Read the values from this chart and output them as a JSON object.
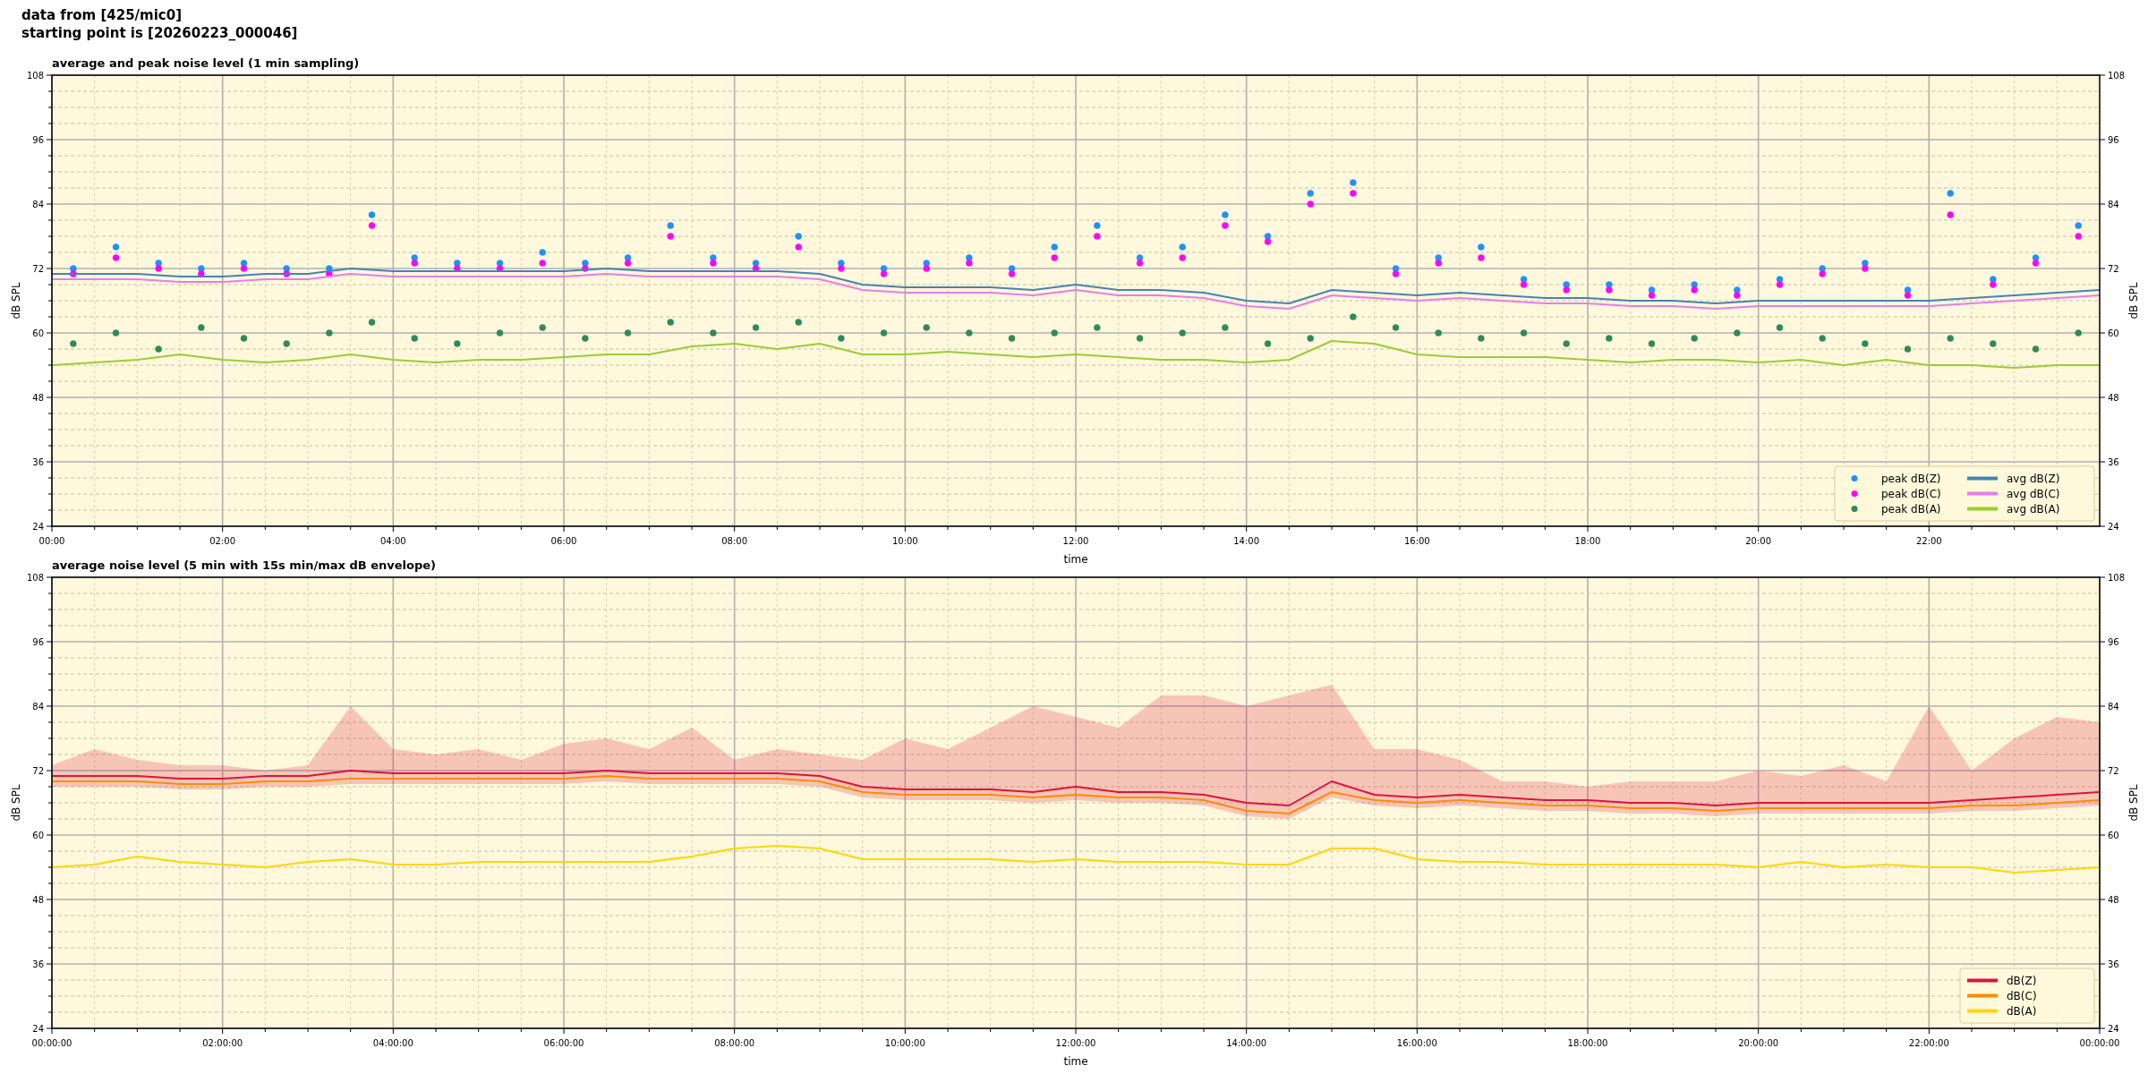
{
  "chart_data": [
    {
      "type": "line",
      "title": "average and peak noise level (1 min sampling)",
      "annotations": [
        "data from [425/mic0]",
        "starting point is [20260223_000046]"
      ],
      "xlabel": "time",
      "ylabel": "dB SPL",
      "y2label": "dB SPL",
      "xlim": [
        0,
        24
      ],
      "ylim": [
        24,
        108
      ],
      "y2lim": [
        24,
        108
      ],
      "xticks": [
        {
          "value": 0,
          "label": "00:00"
        },
        {
          "value": 0.5,
          "label": null
        },
        {
          "value": 1,
          "label": null
        },
        {
          "value": 1.5,
          "label": null
        },
        {
          "value": 2,
          "label": "02:00"
        },
        {
          "value": 2.5,
          "label": null
        },
        {
          "value": 3,
          "label": null
        },
        {
          "value": 3.5,
          "label": null
        },
        {
          "value": 4,
          "label": "04:00"
        },
        {
          "value": 4.5,
          "label": null
        },
        {
          "value": 5,
          "label": null
        },
        {
          "value": 5.5,
          "label": null
        },
        {
          "value": 6,
          "label": "06:00"
        },
        {
          "value": 6.5,
          "label": null
        },
        {
          "value": 7,
          "label": null
        },
        {
          "value": 7.5,
          "label": null
        },
        {
          "value": 8,
          "label": "08:00"
        },
        {
          "value": 8.5,
          "label": null
        },
        {
          "value": 9,
          "label": null
        },
        {
          "value": 9.5,
          "label": null
        },
        {
          "value": 10,
          "label": "10:00"
        },
        {
          "value": 10.5,
          "label": null
        },
        {
          "value": 11,
          "label": null
        },
        {
          "value": 11.5,
          "label": null
        },
        {
          "value": 12,
          "label": "12:00"
        },
        {
          "value": 12.5,
          "label": null
        },
        {
          "value": 13,
          "label": null
        },
        {
          "value": 13.5,
          "label": null
        },
        {
          "value": 14,
          "label": "14:00"
        },
        {
          "value": 14.5,
          "label": null
        },
        {
          "value": 15,
          "label": null
        },
        {
          "value": 15.5,
          "label": null
        },
        {
          "value": 16,
          "label": "16:00"
        },
        {
          "value": 16.5,
          "label": null
        },
        {
          "value": 17,
          "label": null
        },
        {
          "value": 17.5,
          "label": null
        },
        {
          "value": 18,
          "label": "18:00"
        },
        {
          "value": 18.5,
          "label": null
        },
        {
          "value": 19,
          "label": null
        },
        {
          "value": 19.5,
          "label": null
        },
        {
          "value": 20,
          "label": "20:00"
        },
        {
          "value": 20.5,
          "label": null
        },
        {
          "value": 21,
          "label": null
        },
        {
          "value": 21.5,
          "label": null
        },
        {
          "value": 22,
          "label": "22:00"
        },
        {
          "value": 22.5,
          "label": null
        },
        {
          "value": 23,
          "label": null
        },
        {
          "value": 23.5,
          "label": null
        }
      ],
      "yticks": [
        24,
        {
          "value": 27,
          "label": null
        },
        {
          "value": 30,
          "label": null
        },
        {
          "value": 33,
          "label": null
        },
        36,
        {
          "value": 39,
          "label": null
        },
        {
          "value": 42,
          "label": null
        },
        {
          "value": 45,
          "label": null
        },
        48,
        {
          "value": 51,
          "label": null
        },
        {
          "value": 54,
          "label": null
        },
        {
          "value": 57,
          "label": null
        },
        60,
        {
          "value": 63,
          "label": null
        },
        {
          "value": 66,
          "label": null
        },
        {
          "value": 69,
          "label": null
        },
        72,
        {
          "value": 75,
          "label": null
        },
        {
          "value": 78,
          "label": null
        },
        {
          "value": 81,
          "label": null
        },
        84,
        {
          "value": 87,
          "label": null
        },
        {
          "value": 90,
          "label": null
        },
        {
          "value": 93,
          "label": null
        },
        96,
        {
          "value": 99,
          "label": null
        },
        {
          "value": 102,
          "label": null
        },
        {
          "value": 105,
          "label": null
        },
        108
      ],
      "y2ticks": [
        24,
        36,
        48,
        60,
        72,
        84,
        96,
        108
      ],
      "grid": true,
      "legend": "bottom right",
      "x": [
        0,
        0.5,
        1,
        1.5,
        2,
        2.5,
        3,
        3.5,
        4,
        4.5,
        5,
        5.5,
        6,
        6.5,
        7,
        7.5,
        8,
        8.5,
        9,
        9.5,
        10,
        10.5,
        11,
        11.5,
        12,
        12.5,
        13,
        13.5,
        14,
        14.5,
        15,
        15.5,
        16,
        16.5,
        17,
        17.5,
        18,
        18.5,
        19,
        19.5,
        20,
        20.5,
        21,
        21.5,
        22,
        22.5,
        23,
        23.5,
        24
      ],
      "series": [
        {
          "name": "peak dB(Z)",
          "type": "scatter",
          "marker": "circle",
          "color": "#1e90ff",
          "x": [
            0.25,
            0.75,
            1.25,
            1.75,
            2.25,
            2.75,
            3.25,
            3.75,
            4.25,
            4.75,
            5.25,
            5.75,
            6.25,
            6.75,
            7.25,
            7.75,
            8.25,
            8.75,
            9.25,
            9.75,
            10.25,
            10.75,
            11.25,
            11.75,
            12.25,
            12.75,
            13.25,
            13.75,
            14.25,
            14.75,
            15.25,
            15.75,
            16.25,
            16.75,
            17.25,
            17.75,
            18.25,
            18.75,
            19.25,
            19.75,
            20.25,
            20.75,
            21.25,
            21.75,
            22.25,
            22.75,
            23.25,
            23.75
          ],
          "values": [
            72,
            76,
            73,
            72,
            73,
            72,
            72,
            82,
            74,
            73,
            73,
            75,
            73,
            74,
            80,
            74,
            73,
            78,
            73,
            72,
            73,
            74,
            72,
            76,
            80,
            74,
            76,
            82,
            78,
            86,
            88,
            72,
            74,
            76,
            70,
            69,
            69,
            68,
            69,
            68,
            70,
            72,
            73,
            68,
            86,
            70,
            74,
            80
          ]
        },
        {
          "name": "peak dB(C)",
          "type": "scatter",
          "marker": "circle",
          "color": "#ff00ff",
          "x": [
            0.25,
            0.75,
            1.25,
            1.75,
            2.25,
            2.75,
            3.25,
            3.75,
            4.25,
            4.75,
            5.25,
            5.75,
            6.25,
            6.75,
            7.25,
            7.75,
            8.25,
            8.75,
            9.25,
            9.75,
            10.25,
            10.75,
            11.25,
            11.75,
            12.25,
            12.75,
            13.25,
            13.75,
            14.25,
            14.75,
            15.25,
            15.75,
            16.25,
            16.75,
            17.25,
            17.75,
            18.25,
            18.75,
            19.25,
            19.75,
            20.25,
            20.75,
            21.25,
            21.75,
            22.25,
            22.75,
            23.25,
            23.75
          ],
          "values": [
            71,
            74,
            72,
            71,
            72,
            71,
            71,
            80,
            73,
            72,
            72,
            73,
            72,
            73,
            78,
            73,
            72,
            76,
            72,
            71,
            72,
            73,
            71,
            74,
            78,
            73,
            74,
            80,
            77,
            84,
            86,
            71,
            73,
            74,
            69,
            68,
            68,
            67,
            68,
            67,
            69,
            71,
            72,
            67,
            82,
            69,
            73,
            78
          ]
        },
        {
          "name": "peak dB(A)",
          "type": "scatter",
          "marker": "circle",
          "color": "#2e8b57",
          "x": [
            0.25,
            0.75,
            1.25,
            1.75,
            2.25,
            2.75,
            3.25,
            3.75,
            4.25,
            4.75,
            5.25,
            5.75,
            6.25,
            6.75,
            7.25,
            7.75,
            8.25,
            8.75,
            9.25,
            9.75,
            10.25,
            10.75,
            11.25,
            11.75,
            12.25,
            12.75,
            13.25,
            13.75,
            14.25,
            14.75,
            15.25,
            15.75,
            16.25,
            16.75,
            17.25,
            17.75,
            18.25,
            18.75,
            19.25,
            19.75,
            20.25,
            20.75,
            21.25,
            21.75,
            22.25,
            22.75,
            23.25,
            23.75
          ],
          "values": [
            58,
            60,
            57,
            61,
            59,
            58,
            60,
            62,
            59,
            58,
            60,
            61,
            59,
            60,
            62,
            60,
            61,
            62,
            59,
            60,
            61,
            60,
            59,
            60,
            61,
            59,
            60,
            61,
            58,
            59,
            63,
            61,
            60,
            59,
            60,
            58,
            59,
            58,
            59,
            60,
            61,
            59,
            58,
            57,
            59,
            58,
            57,
            60
          ]
        },
        {
          "name": "avg dB(Z)",
          "color": "#4682b4",
          "values": [
            71,
            71,
            71,
            70.5,
            70.5,
            71,
            71,
            72,
            71.5,
            71.5,
            71.5,
            71.5,
            71.5,
            72,
            71.5,
            71.5,
            71.5,
            71.5,
            71,
            69,
            68.5,
            68.5,
            68.5,
            68,
            69,
            68,
            68,
            67.5,
            66,
            65.5,
            68,
            67.5,
            67,
            67.5,
            67,
            66.5,
            66.5,
            66,
            66,
            65.5,
            66,
            66,
            66,
            66,
            66,
            66.5,
            67,
            67.5,
            68
          ]
        },
        {
          "name": "avg dB(C)",
          "color": "#e87de8",
          "values": [
            70,
            70,
            70,
            69.5,
            69.5,
            70,
            70,
            71,
            70.5,
            70.5,
            70.5,
            70.5,
            70.5,
            71,
            70.5,
            70.5,
            70.5,
            70.5,
            70,
            68,
            67.5,
            67.5,
            67.5,
            67,
            68,
            67,
            67,
            66.5,
            65,
            64.5,
            67,
            66.5,
            66,
            66.5,
            66,
            65.5,
            65.5,
            65,
            65,
            64.5,
            65,
            65,
            65,
            65,
            65,
            65.5,
            66,
            66.5,
            67
          ]
        },
        {
          "name": "avg dB(A)",
          "color": "#9acd32",
          "values": [
            54,
            54.5,
            55,
            56,
            55,
            54.5,
            55,
            56,
            55,
            54.5,
            55,
            55,
            55.5,
            56,
            56,
            57.5,
            58,
            57,
            58,
            56,
            56,
            56.5,
            56,
            55.5,
            56,
            55.5,
            55,
            55,
            54.5,
            55,
            58.5,
            58,
            56,
            55.5,
            55.5,
            55.5,
            55,
            54.5,
            55,
            55,
            54.5,
            55,
            54,
            55,
            54,
            54,
            53.5,
            54,
            54
          ]
        }
      ]
    },
    {
      "type": "line",
      "title": "average noise level (5 min with 15s min/max dB envelope)",
      "xlabel": "time",
      "ylabel": "dB SPL",
      "y2label": "dB SPL",
      "xlim": [
        "2026-02-23T00:00",
        "2026-02-24T00:00"
      ],
      "ylim": [
        24,
        108
      ],
      "y2lim": [
        24,
        108
      ],
      "xticks": [
        {
          "value": "2026-02-23T00:00",
          "label": "00:00:00"
        },
        {
          "value": "2026-02-23T00:30",
          "label": null
        },
        {
          "value": "2026-02-23T01:00",
          "label": null
        },
        {
          "value": "2026-02-23T01:30",
          "label": null
        },
        {
          "value": "2026-02-23T02:00",
          "label": "02:00:00"
        },
        {
          "value": "2026-02-23T02:30",
          "label": null
        },
        {
          "value": "2026-02-23T03:00",
          "label": null
        },
        {
          "value": "2026-02-23T03:30",
          "label": null
        },
        {
          "value": "2026-02-23T04:00",
          "label": "04:00:00"
        },
        {
          "value": "2026-02-23T04:30",
          "label": null
        },
        {
          "value": "2026-02-23T05:00",
          "label": null
        },
        {
          "value": "2026-02-23T05:30",
          "label": null
        },
        {
          "value": "2026-02-23T06:00",
          "label": "06:00:00"
        },
        {
          "value": "2026-02-23T06:30",
          "label": null
        },
        {
          "value": "2026-02-23T07:00",
          "label": null
        },
        {
          "value": "2026-02-23T07:30",
          "label": null
        },
        {
          "value": "2026-02-23T08:00",
          "label": "08:00:00"
        },
        {
          "value": "2026-02-23T08:30",
          "label": null
        },
        {
          "value": "2026-02-23T09:00",
          "label": null
        },
        {
          "value": "2026-02-23T09:30",
          "label": null
        },
        {
          "value": "2026-02-23T10:00",
          "label": "10:00:00"
        },
        {
          "value": "2026-02-23T10:30",
          "label": null
        },
        {
          "value": "2026-02-23T11:00",
          "label": null
        },
        {
          "value": "2026-02-23T11:30",
          "label": null
        },
        {
          "value": "2026-02-23T12:00",
          "label": "12:00:00"
        },
        {
          "value": "2026-02-23T12:30",
          "label": null
        },
        {
          "value": "2026-02-23T13:00",
          "label": null
        },
        {
          "value": "2026-02-23T13:30",
          "label": null
        },
        {
          "value": "2026-02-23T14:00",
          "label": "14:00:00"
        },
        {
          "value": "2026-02-23T14:30",
          "label": null
        },
        {
          "value": "2026-02-23T15:00",
          "label": null
        },
        {
          "value": "2026-02-23T15:30",
          "label": null
        },
        {
          "value": "2026-02-23T16:00",
          "label": "16:00:00"
        },
        {
          "value": "2026-02-23T16:30",
          "label": null
        },
        {
          "value": "2026-02-23T17:00",
          "label": null
        },
        {
          "value": "2026-02-23T17:30",
          "label": null
        },
        {
          "value": "2026-02-23T18:00",
          "label": "18:00:00"
        },
        {
          "value": "2026-02-23T18:30",
          "label": null
        },
        {
          "value": "2026-02-23T19:00",
          "label": null
        },
        {
          "value": "2026-02-23T19:30",
          "label": null
        },
        {
          "value": "2026-02-23T20:00",
          "label": "20:00:00"
        },
        {
          "value": "2026-02-23T20:30",
          "label": null
        },
        {
          "value": "2026-02-23T21:00",
          "label": null
        },
        {
          "value": "2026-02-23T21:30",
          "label": null
        },
        {
          "value": "2026-02-23T22:00",
          "label": "22:00:00"
        },
        {
          "value": "2026-02-23T22:30",
          "label": null
        },
        {
          "value": "2026-02-23T23:00",
          "label": null
        },
        {
          "value": "2026-02-23T23:30",
          "label": null
        },
        {
          "value": "2026-02-24T00:00",
          "label": "00:00:00"
        }
      ],
      "yticks": [
        24,
        {
          "value": 27,
          "label": null
        },
        {
          "value": 30,
          "label": null
        },
        {
          "value": 33,
          "label": null
        },
        36,
        {
          "value": 39,
          "label": null
        },
        {
          "value": 42,
          "label": null
        },
        {
          "value": 45,
          "label": null
        },
        48,
        {
          "value": 51,
          "label": null
        },
        {
          "value": 54,
          "label": null
        },
        {
          "value": 57,
          "label": null
        },
        60,
        {
          "value": 63,
          "label": null
        },
        {
          "value": 66,
          "label": null
        },
        {
          "value": 69,
          "label": null
        },
        72,
        {
          "value": 75,
          "label": null
        },
        {
          "value": 78,
          "label": null
        },
        {
          "value": 81,
          "label": null
        },
        84,
        {
          "value": 87,
          "label": null
        },
        {
          "value": 90,
          "label": null
        },
        {
          "value": 93,
          "label": null
        },
        96,
        {
          "value": 99,
          "label": null
        },
        {
          "value": 102,
          "label": null
        },
        {
          "value": 105,
          "label": null
        },
        108
      ],
      "y2ticks": [
        24,
        36,
        48,
        60,
        72,
        84,
        96,
        108
      ],
      "grid": true,
      "legend": "bottom right",
      "x": [
        "2026-02-23T00:00",
        "2026-02-23T00:30",
        "2026-02-23T01:00",
        "2026-02-23T01:30",
        "2026-02-23T02:00",
        "2026-02-23T02:30",
        "2026-02-23T03:00",
        "2026-02-23T03:30",
        "2026-02-23T04:00",
        "2026-02-23T04:30",
        "2026-02-23T05:00",
        "2026-02-23T05:30",
        "2026-02-23T06:00",
        "2026-02-23T06:30",
        "2026-02-23T07:00",
        "2026-02-23T07:30",
        "2026-02-23T08:00",
        "2026-02-23T08:30",
        "2026-02-23T09:00",
        "2026-02-23T09:30",
        "2026-02-23T10:00",
        "2026-02-23T10:30",
        "2026-02-23T11:00",
        "2026-02-23T11:30",
        "2026-02-23T12:00",
        "2026-02-23T12:30",
        "2026-02-23T13:00",
        "2026-02-23T13:30",
        "2026-02-23T14:00",
        "2026-02-23T14:30",
        "2026-02-23T15:00",
        "2026-02-23T15:30",
        "2026-02-23T16:00",
        "2026-02-23T16:30",
        "2026-02-23T17:00",
        "2026-02-23T17:30",
        "2026-02-23T18:00",
        "2026-02-23T18:30",
        "2026-02-23T19:00",
        "2026-02-23T19:30",
        "2026-02-23T20:00",
        "2026-02-23T20:30",
        "2026-02-23T21:00",
        "2026-02-23T21:30",
        "2026-02-23T22:00",
        "2026-02-23T22:30",
        "2026-02-23T23:00",
        "2026-02-23T23:30",
        "2026-02-24T00:00"
      ],
      "series": [
        {
          "name": "dB(Z)",
          "color": "#dc143c",
          "values": [
            71,
            71,
            71,
            70.5,
            70.5,
            71,
            71,
            72,
            71.5,
            71.5,
            71.5,
            71.5,
            71.5,
            72,
            71.5,
            71.5,
            71.5,
            71.5,
            71,
            69,
            68.5,
            68.5,
            68.5,
            68,
            69,
            68,
            68,
            67.5,
            66,
            65.5,
            70,
            67.5,
            67,
            67.5,
            67,
            66.5,
            66.5,
            66,
            66,
            65.5,
            66,
            66,
            66,
            66,
            66,
            66.5,
            67,
            67.5,
            68
          ],
          "lower": [
            69,
            69,
            69,
            68.5,
            68.5,
            69,
            69,
            69.5,
            69.5,
            69.5,
            69.5,
            69.5,
            69.5,
            70,
            69.5,
            69.5,
            69.5,
            69.5,
            69,
            67,
            66.5,
            66.5,
            66.5,
            66,
            66.5,
            66,
            66,
            65.5,
            63.5,
            63,
            67,
            65.5,
            65,
            65.5,
            65,
            64.5,
            64.5,
            64,
            64,
            63.5,
            64,
            64,
            64,
            64,
            64,
            64.5,
            64.5,
            65,
            65.5
          ],
          "upper": [
            73,
            76,
            74,
            73,
            73,
            72,
            73,
            84,
            76,
            75,
            76,
            74,
            77,
            78,
            76,
            80,
            74,
            76,
            75,
            74,
            78,
            76,
            80,
            84,
            82,
            80,
            86,
            86,
            84,
            86,
            88,
            76,
            76,
            74,
            70,
            70,
            69,
            70,
            70,
            70,
            72,
            71,
            73,
            70,
            84,
            72,
            78,
            82,
            81
          ]
        },
        {
          "name": "dB(C)",
          "color": "#ff8c00",
          "values": [
            70,
            70,
            70,
            69.5,
            69.5,
            70,
            70,
            70.5,
            70.5,
            70.5,
            70.5,
            70.5,
            70.5,
            71,
            70.5,
            70.5,
            70.5,
            70.5,
            70,
            68,
            67.5,
            67.5,
            67.5,
            67,
            67.5,
            67,
            67,
            66.5,
            64.5,
            64,
            68,
            66.5,
            66,
            66.5,
            66,
            65.5,
            65.5,
            65,
            65,
            64.5,
            65,
            65,
            65,
            65,
            65,
            65.5,
            65.5,
            66,
            66.5
          ]
        },
        {
          "name": "dB(A)",
          "color": "#ffd700",
          "values": [
            54,
            54.5,
            56,
            55,
            54.5,
            54,
            55,
            55.5,
            54.5,
            54.5,
            55,
            55,
            55,
            55,
            55,
            56,
            57.5,
            58,
            57.5,
            55.5,
            55.5,
            55.5,
            55.5,
            55,
            55.5,
            55,
            55,
            55,
            54.5,
            54.5,
            57.5,
            57.5,
            55.5,
            55,
            55,
            54.5,
            54.5,
            54.5,
            54.5,
            54.5,
            54,
            55,
            54,
            54.5,
            54,
            54,
            53,
            53.5,
            54
          ]
        }
      ]
    }
  ]
}
